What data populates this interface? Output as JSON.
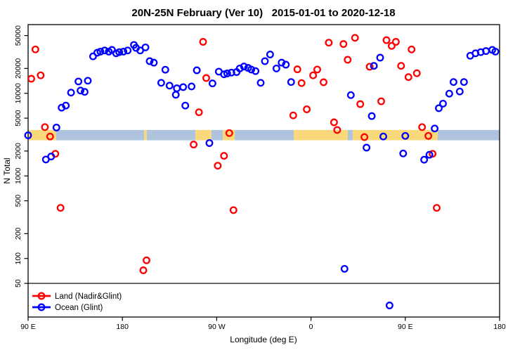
{
  "title": "20N-25N February (Ver 10)   2015-01-01 to 2020-12-18",
  "axes": {
    "xlabel": "Longitude (deg E)",
    "ylabel": "N Total"
  },
  "legend": {
    "items": [
      {
        "label": "Land (Nadir&Glint)",
        "color": "#ff0000"
      },
      {
        "label": "Ocean (Glint)",
        "color": "#0000ff"
      }
    ]
  },
  "colors": {
    "land_point": "#ff0000",
    "ocean_point": "#0000ff",
    "strip_land": "#fad87c",
    "strip_ocean": "#aec3dd",
    "reference_line": "#3a3a3a",
    "axis": "#000000"
  },
  "chart_data": {
    "type": "scatter",
    "title": "20N-25N February (Ver 10)   2015-01-01 to 2020-12-18",
    "xlabel": "Longitude (deg E)",
    "ylabel": "N Total",
    "x_axis": {
      "note": "longitude continued eastward from 90E; 90=90E, 180=180, 270=90W, 360=0, 450=90E, 540=180",
      "range": [
        90,
        540
      ],
      "tick_values": [
        90,
        180,
        270,
        360,
        450,
        540
      ],
      "tick_labels": [
        "90 E",
        "180",
        "90 W",
        "0",
        "90 E",
        "180"
      ]
    },
    "y_axis": {
      "scale": "log",
      "range": [
        12,
        59000
      ],
      "tick_values": [
        50,
        100,
        200,
        500,
        1000,
        2000,
        5000,
        10000,
        20000,
        50000
      ],
      "tick_labels": [
        "50",
        "100",
        "200",
        "500",
        "1000",
        "2000",
        "5000",
        "10000",
        "20000",
        "50000"
      ]
    },
    "reference_line": {
      "n": 50
    },
    "land_ocean_strip": {
      "n_top": 3600,
      "n_bottom": 2700,
      "segments": [
        {
          "from": 90,
          "to": 116.8,
          "type": "land"
        },
        {
          "from": 116.8,
          "to": 200.7,
          "type": "ocean"
        },
        {
          "from": 200.7,
          "to": 203.3,
          "type": "land"
        },
        {
          "from": 203.3,
          "to": 249.6,
          "type": "ocean"
        },
        {
          "from": 249.6,
          "to": 265.0,
          "type": "land"
        },
        {
          "from": 265.0,
          "to": 275.8,
          "type": "ocean"
        },
        {
          "from": 275.8,
          "to": 287.2,
          "type": "land"
        },
        {
          "from": 287.2,
          "to": 343.5,
          "type": "ocean"
        },
        {
          "from": 343.5,
          "to": 395.1,
          "type": "land"
        },
        {
          "from": 395.1,
          "to": 399.8,
          "type": "ocean"
        },
        {
          "from": 399.8,
          "to": 481.0,
          "type": "land"
        },
        {
          "from": 481.0,
          "to": 540,
          "type": "ocean"
        }
      ]
    },
    "series": [
      {
        "name": "Land (Nadir&Glint)",
        "color": "#ff0000",
        "points": [
          [
            97,
            34000
          ],
          [
            93,
            15000
          ],
          [
            102,
            16500
          ],
          [
            106,
            3900
          ],
          [
            111,
            3000
          ],
          [
            116,
            1850
          ],
          [
            121,
            410
          ],
          [
            203,
            95
          ],
          [
            200,
            72
          ],
          [
            257,
            42000
          ],
          [
            260,
            15300
          ],
          [
            253,
            5900
          ],
          [
            282,
            3300
          ],
          [
            248,
            2400
          ],
          [
            277,
            1750
          ],
          [
            271,
            1330
          ],
          [
            286,
            385
          ],
          [
            347,
            19500
          ],
          [
            351,
            13300
          ],
          [
            362,
            16500
          ],
          [
            366,
            19400
          ],
          [
            372,
            13600
          ],
          [
            377,
            41000
          ],
          [
            391,
            39500
          ],
          [
            356,
            6400
          ],
          [
            343,
            5400
          ],
          [
            382,
            4450
          ],
          [
            385,
            3600
          ],
          [
            402,
            47000
          ],
          [
            432,
            44000
          ],
          [
            441,
            42000
          ],
          [
            437,
            37500
          ],
          [
            456,
            34000
          ],
          [
            395,
            25500
          ],
          [
            416,
            21000
          ],
          [
            446,
            21500
          ],
          [
            453,
            15700
          ],
          [
            461,
            17500
          ],
          [
            407,
            7400
          ],
          [
            427,
            8000
          ],
          [
            466,
            3900
          ],
          [
            411,
            2950
          ],
          [
            472,
            3050
          ],
          [
            476,
            1850
          ],
          [
            480,
            410
          ]
        ]
      },
      {
        "name": "Ocean (Glint)",
        "color": "#0000ff",
        "points": [
          [
            90,
            3100
          ],
          [
            117,
            3850
          ],
          [
            107,
            1580
          ],
          [
            112,
            1720
          ],
          [
            122,
            6700
          ],
          [
            126,
            7100
          ],
          [
            131,
            10200
          ],
          [
            138,
            13900
          ],
          [
            140,
            10800
          ],
          [
            144,
            10400
          ],
          [
            147,
            14200
          ],
          [
            152,
            28000
          ],
          [
            156,
            31000
          ],
          [
            159,
            32000
          ],
          [
            163,
            33000
          ],
          [
            167,
            32000
          ],
          [
            170,
            33500
          ],
          [
            174,
            30500
          ],
          [
            177,
            31500
          ],
          [
            181,
            32000
          ],
          [
            185,
            33000
          ],
          [
            191,
            38500
          ],
          [
            193,
            35500
          ],
          [
            197,
            33000
          ],
          [
            202,
            36000
          ],
          [
            206,
            24500
          ],
          [
            210,
            23500
          ],
          [
            221,
            19300
          ],
          [
            217,
            13400
          ],
          [
            225,
            12400
          ],
          [
            232,
            11500
          ],
          [
            231,
            9600
          ],
          [
            240,
            7100
          ],
          [
            251,
            19000
          ],
          [
            246,
            12100
          ],
          [
            238,
            11900
          ],
          [
            266,
            13200
          ],
          [
            272,
            18300
          ],
          [
            277,
            17000
          ],
          [
            280,
            17400
          ],
          [
            284,
            17800
          ],
          [
            289,
            18100
          ],
          [
            292,
            20000
          ],
          [
            296,
            21100
          ],
          [
            300,
            20300
          ],
          [
            303,
            19400
          ],
          [
            307,
            18600
          ],
          [
            316,
            24500
          ],
          [
            321,
            29500
          ],
          [
            312,
            13400
          ],
          [
            327,
            20000
          ],
          [
            332,
            23500
          ],
          [
            336,
            22200
          ],
          [
            341,
            13700
          ],
          [
            263,
            2500
          ],
          [
            392,
            75
          ],
          [
            435,
            27
          ],
          [
            426,
            27000
          ],
          [
            420,
            21500
          ],
          [
            398,
            9500
          ],
          [
            418,
            5300
          ],
          [
            496,
            13700
          ],
          [
            506,
            13700
          ],
          [
            492,
            9900
          ],
          [
            502,
            10500
          ],
          [
            486,
            7500
          ],
          [
            482,
            6600
          ],
          [
            512,
            28500
          ],
          [
            517,
            30500
          ],
          [
            522,
            31500
          ],
          [
            527,
            32500
          ],
          [
            533,
            33500
          ],
          [
            536,
            32000
          ],
          [
            478,
            3750
          ],
          [
            429,
            3000
          ],
          [
            450,
            3050
          ],
          [
            413,
            2200
          ],
          [
            448,
            1870
          ],
          [
            468,
            1570
          ],
          [
            473,
            1800
          ]
        ]
      }
    ]
  }
}
